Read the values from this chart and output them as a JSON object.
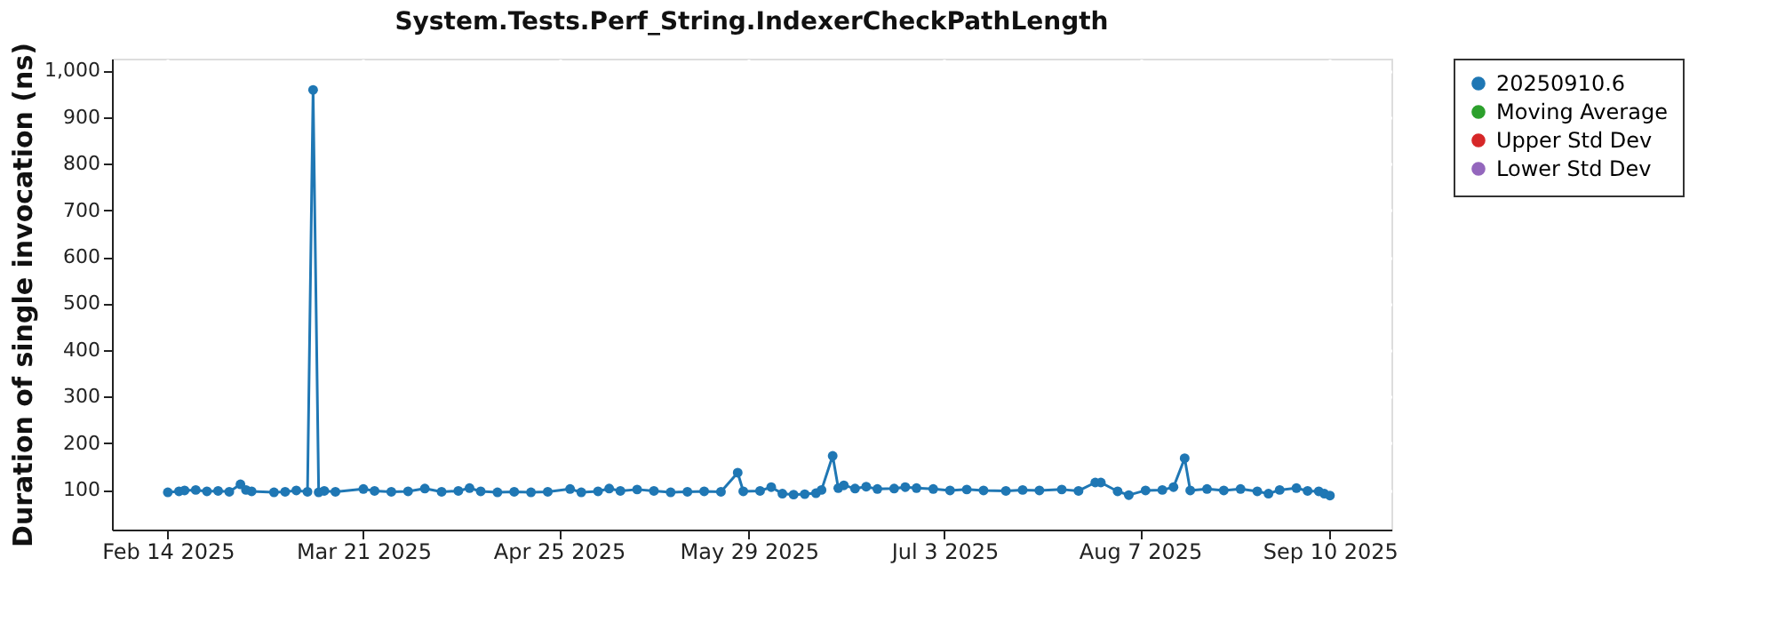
{
  "chart_data": {
    "type": "line",
    "title": "System.Tests.Perf_String.IndexerCheckPathLength",
    "ylabel": "Duration of single invocation (ns)",
    "x": [
      "2025-02-14",
      "2025-02-16",
      "2025-02-17",
      "2025-02-19",
      "2025-02-21",
      "2025-02-23",
      "2025-02-25",
      "2025-02-27",
      "2025-02-28",
      "2025-03-01",
      "2025-03-05",
      "2025-03-07",
      "2025-03-09",
      "2025-03-11",
      "2025-03-12",
      "2025-03-13",
      "2025-03-14",
      "2025-03-16",
      "2025-03-21",
      "2025-03-23",
      "2025-03-26",
      "2025-03-29",
      "2025-04-01",
      "2025-04-04",
      "2025-04-07",
      "2025-04-09",
      "2025-04-11",
      "2025-04-14",
      "2025-04-17",
      "2025-04-20",
      "2025-04-23",
      "2025-04-27",
      "2025-04-29",
      "2025-05-02",
      "2025-05-04",
      "2025-05-06",
      "2025-05-09",
      "2025-05-12",
      "2025-05-15",
      "2025-05-18",
      "2025-05-21",
      "2025-05-24",
      "2025-05-27",
      "2025-05-28",
      "2025-05-31",
      "2025-06-02",
      "2025-06-04",
      "2025-06-06",
      "2025-06-08",
      "2025-06-10",
      "2025-06-11",
      "2025-06-13",
      "2025-06-14",
      "2025-06-15",
      "2025-06-17",
      "2025-06-19",
      "2025-06-21",
      "2025-06-24",
      "2025-06-26",
      "2025-06-28",
      "2025-07-01",
      "2025-07-04",
      "2025-07-07",
      "2025-07-10",
      "2025-07-14",
      "2025-07-17",
      "2025-07-20",
      "2025-07-24",
      "2025-07-27",
      "2025-07-30",
      "2025-07-31",
      "2025-08-03",
      "2025-08-05",
      "2025-08-08",
      "2025-08-11",
      "2025-08-13",
      "2025-08-15",
      "2025-08-16",
      "2025-08-19",
      "2025-08-22",
      "2025-08-25",
      "2025-08-28",
      "2025-08-30",
      "2025-09-01",
      "2025-09-04",
      "2025-09-06",
      "2025-09-08",
      "2025-09-09",
      "2025-09-10"
    ],
    "series": [
      {
        "name": "20250910.6",
        "color": "#1f77b4",
        "values": [
          95,
          97,
          99,
          100,
          97,
          98,
          96,
          112,
          100,
          97,
          95,
          96,
          99,
          96,
          958,
          95,
          98,
          96,
          102,
          98,
          96,
          97,
          103,
          96,
          98,
          104,
          97,
          95,
          96,
          95,
          96,
          102,
          95,
          97,
          103,
          98,
          101,
          98,
          95,
          96,
          97,
          96,
          137,
          97,
          98,
          106,
          92,
          90,
          91,
          93,
          100,
          173,
          104,
          110,
          103,
          107,
          102,
          103,
          106,
          104,
          102,
          99,
          101,
          99,
          98,
          100,
          99,
          101,
          98,
          116,
          116,
          97,
          89,
          99,
          100,
          106,
          168,
          99,
          102,
          99,
          102,
          97,
          92,
          100,
          104,
          98,
          97,
          92,
          88
        ]
      },
      {
        "name": "Moving Average",
        "color": "#2ca02c",
        "values": [
          null,
          null,
          null,
          null,
          null,
          null,
          null,
          null,
          null,
          null,
          null,
          null,
          null,
          null,
          null,
          null,
          null,
          null,
          null,
          null,
          null,
          null,
          null,
          null,
          null,
          null,
          null,
          null,
          null,
          null,
          null,
          null,
          null,
          null,
          null,
          null,
          null,
          null,
          null,
          null,
          null,
          null,
          null,
          null,
          null,
          null,
          null,
          null,
          null,
          null,
          null,
          null,
          null,
          null,
          null,
          null,
          null,
          null,
          null,
          null,
          null,
          null,
          null,
          null,
          null,
          null,
          null,
          null,
          null,
          null,
          null,
          null,
          null,
          null,
          null,
          null,
          null,
          null,
          null,
          null,
          null,
          null,
          null,
          null,
          null,
          null,
          null,
          null,
          null
        ]
      },
      {
        "name": "Upper Std Dev",
        "color": "#d62728",
        "values": [
          null,
          null,
          null,
          null,
          null,
          null,
          null,
          null,
          null,
          null,
          null,
          null,
          null,
          null,
          null,
          null,
          null,
          null,
          null,
          null,
          null,
          null,
          null,
          null,
          null,
          null,
          null,
          null,
          null,
          null,
          null,
          null,
          null,
          null,
          null,
          null,
          null,
          null,
          null,
          null,
          null,
          null,
          null,
          null,
          null,
          null,
          null,
          null,
          null,
          null,
          null,
          null,
          null,
          null,
          null,
          null,
          null,
          null,
          null,
          null,
          null,
          null,
          null,
          null,
          null,
          null,
          null,
          null,
          null,
          null,
          null,
          null,
          null,
          null,
          null,
          null,
          null,
          null,
          null,
          null,
          null,
          null,
          null,
          null,
          null,
          null,
          null,
          null,
          null
        ]
      },
      {
        "name": "Lower Std Dev",
        "color": "#9467bd",
        "values": [
          null,
          null,
          null,
          null,
          null,
          null,
          null,
          null,
          null,
          null,
          null,
          null,
          null,
          null,
          null,
          null,
          null,
          null,
          null,
          null,
          null,
          null,
          null,
          null,
          null,
          null,
          null,
          null,
          null,
          null,
          null,
          null,
          null,
          null,
          null,
          null,
          null,
          null,
          null,
          null,
          null,
          null,
          null,
          null,
          null,
          null,
          null,
          null,
          null,
          null,
          null,
          null,
          null,
          null,
          null,
          null,
          null,
          null,
          null,
          null,
          null,
          null,
          null,
          null,
          null,
          null,
          null,
          null,
          null,
          null,
          null,
          null,
          null,
          null,
          null,
          null,
          null,
          null,
          null,
          null,
          null,
          null,
          null,
          null,
          null,
          null,
          null,
          null,
          null
        ]
      }
    ],
    "xlim": [
      "2025-02-04",
      "2025-09-21"
    ],
    "xticks": [
      {
        "value": "2025-02-14",
        "label": "Feb 14 2025"
      },
      {
        "value": "2025-03-21",
        "label": "Mar 21 2025"
      },
      {
        "value": "2025-04-25",
        "label": "Apr 25 2025"
      },
      {
        "value": "2025-05-29",
        "label": "May 29 2025"
      },
      {
        "value": "2025-07-03",
        "label": "Jul 3 2025"
      },
      {
        "value": "2025-08-07",
        "label": "Aug 7 2025"
      },
      {
        "value": "2025-09-10",
        "label": "Sep 10 2025"
      }
    ],
    "ylim": [
      15,
      1025
    ],
    "yticks": [
      100,
      200,
      300,
      400,
      500,
      600,
      700,
      800,
      900,
      {
        "value": 1000,
        "label": "1,000"
      }
    ],
    "grid": true,
    "legend": "right",
    "marker": "circle",
    "line_style": "solid"
  }
}
